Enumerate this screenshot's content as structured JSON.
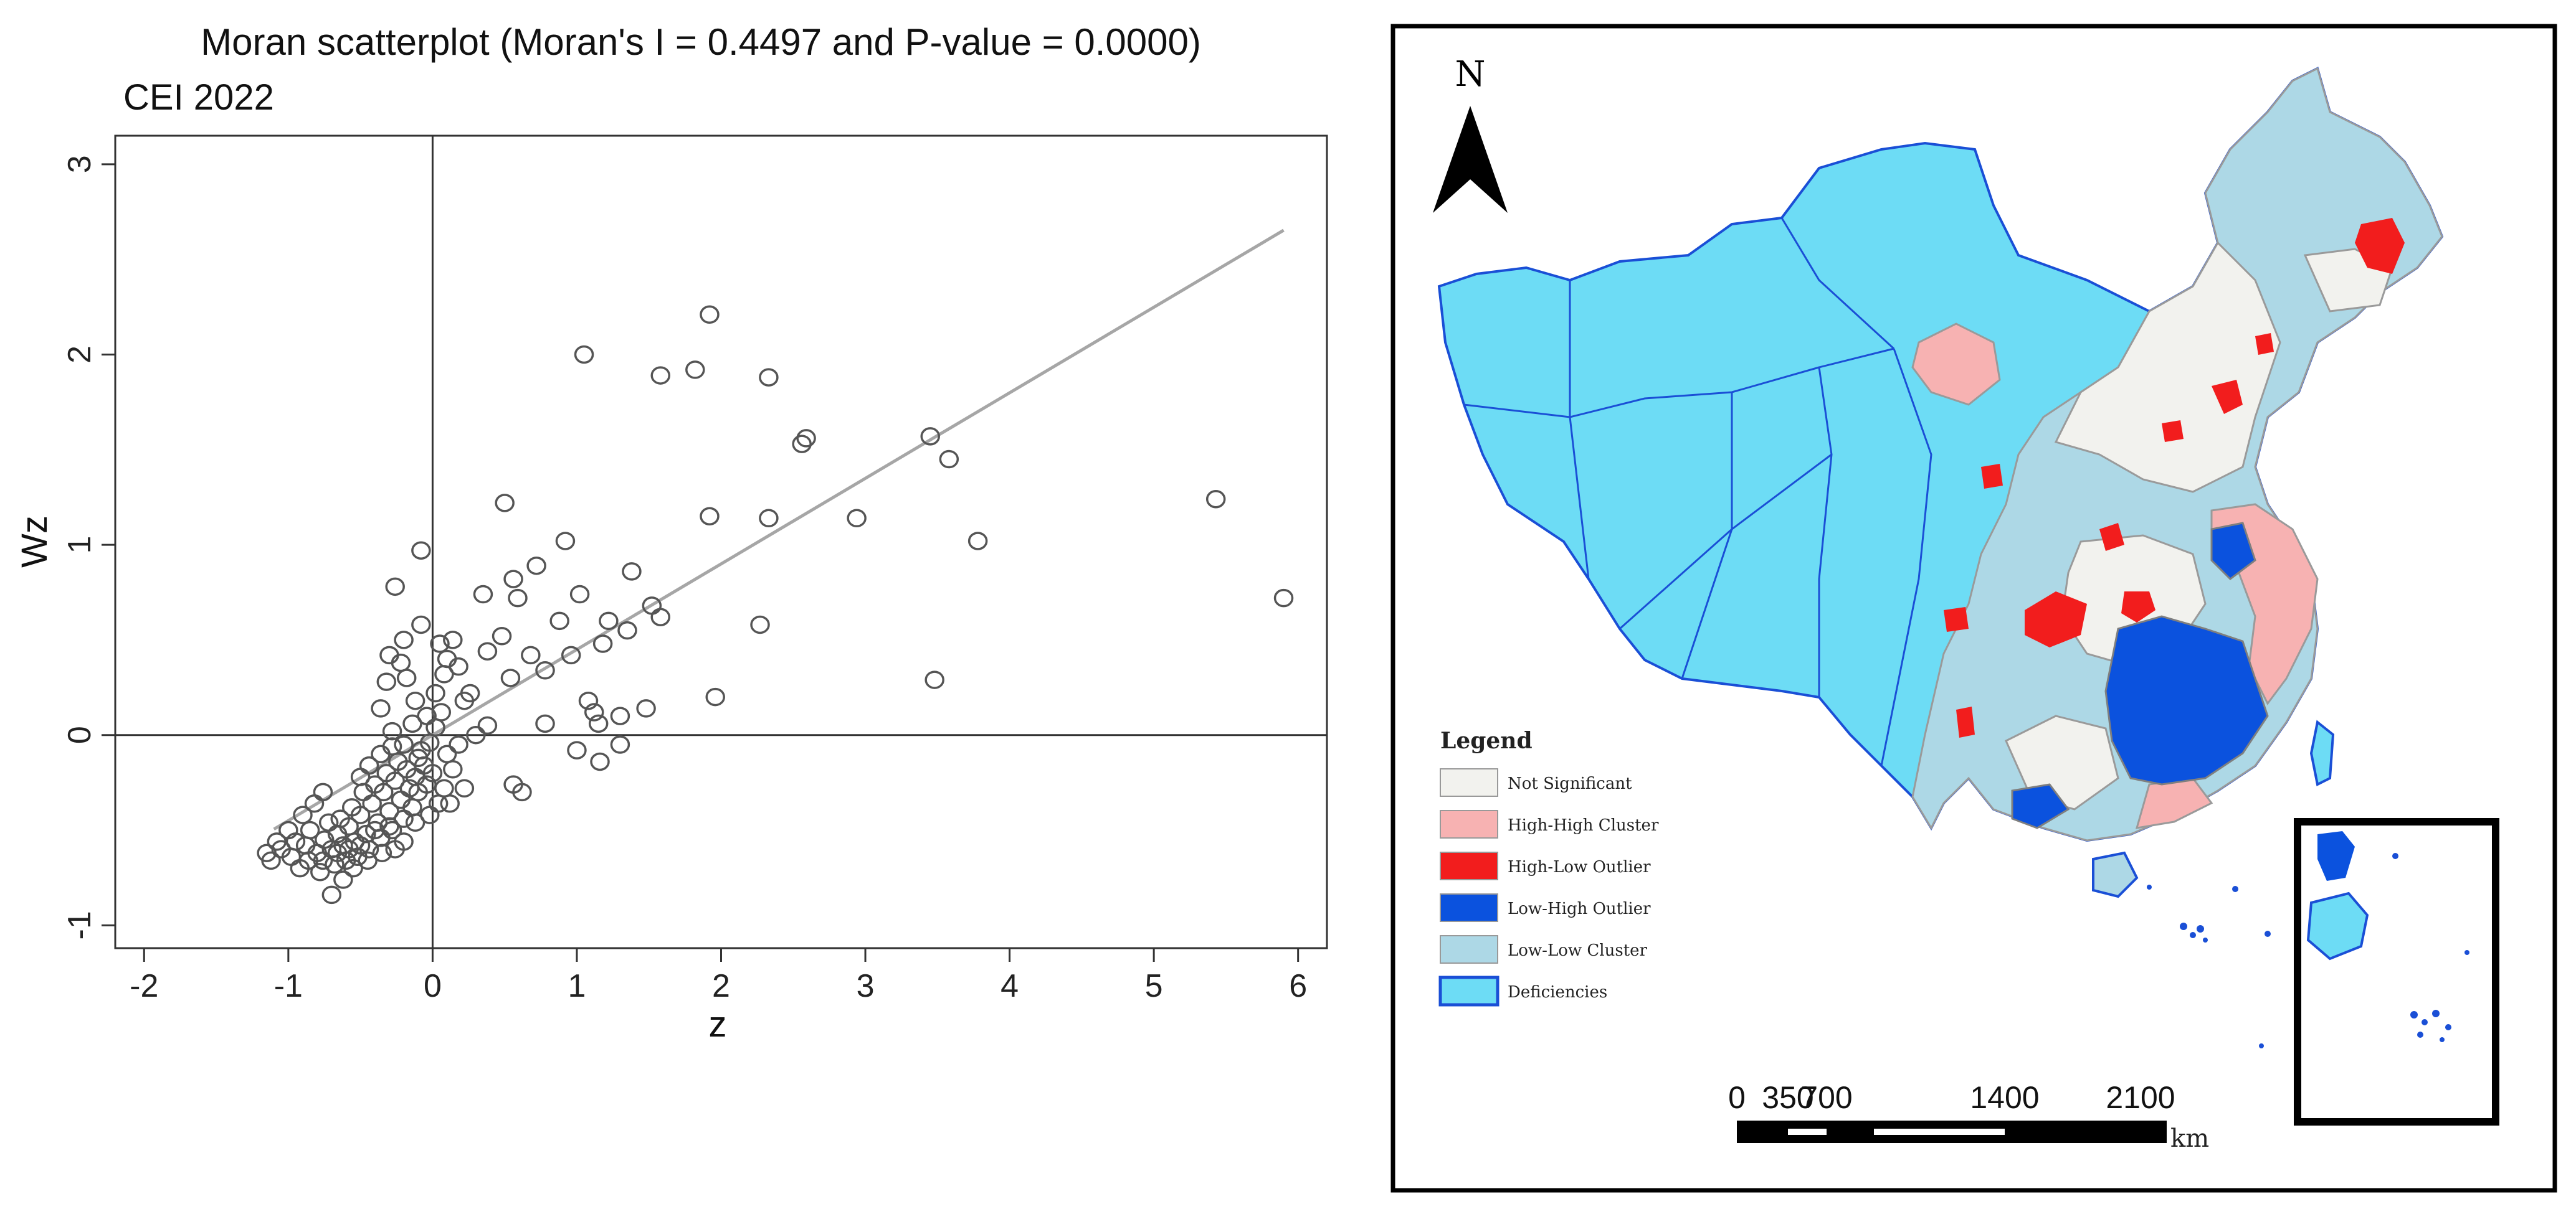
{
  "chart_data": {
    "type": "scatter",
    "title": "Moran scatterplot (Moran's I = 0.4497 and P-value = 0.0000)",
    "subtitle": "CEI 2022",
    "xlabel": "z",
    "ylabel": "Wz",
    "xlim": [
      -2.2,
      6.2
    ],
    "ylim": [
      -1.12,
      3.15
    ],
    "xticks": [
      "-2",
      "-1",
      "0",
      "1",
      "2",
      "3",
      "4",
      "5",
      "6"
    ],
    "yticks": [
      "-1",
      "0",
      "1",
      "2",
      "3"
    ],
    "fit_line": {
      "slope": 0.4497,
      "x_range": [
        -1.1,
        5.9
      ]
    },
    "colors": {
      "points": "#555555",
      "fit_line": "#a6a6a6",
      "axes": "#333333"
    },
    "points": [
      [
        1.05,
        2.0
      ],
      [
        1.92,
        2.21
      ],
      [
        1.58,
        1.89
      ],
      [
        1.82,
        1.92
      ],
      [
        2.33,
        1.88
      ],
      [
        2.56,
        1.53
      ],
      [
        2.59,
        1.56
      ],
      [
        3.45,
        1.57
      ],
      [
        3.58,
        1.45
      ],
      [
        5.43,
        1.24
      ],
      [
        5.9,
        0.72
      ],
      [
        3.78,
        1.02
      ],
      [
        2.94,
        1.14
      ],
      [
        2.33,
        1.14
      ],
      [
        1.92,
        1.15
      ],
      [
        3.48,
        0.29
      ],
      [
        1.96,
        0.2
      ],
      [
        2.27,
        0.58
      ],
      [
        0.5,
        1.22
      ],
      [
        0.92,
        1.02
      ],
      [
        1.02,
        0.74
      ],
      [
        1.38,
        0.86
      ],
      [
        0.56,
        0.82
      ],
      [
        0.59,
        0.72
      ],
      [
        0.72,
        0.89
      ],
      [
        0.35,
        0.74
      ],
      [
        0.88,
        0.6
      ],
      [
        1.22,
        0.6
      ],
      [
        1.35,
        0.55
      ],
      [
        1.58,
        0.62
      ],
      [
        1.52,
        0.68
      ],
      [
        1.18,
        0.48
      ],
      [
        0.68,
        0.42
      ],
      [
        0.48,
        0.52
      ],
      [
        0.38,
        0.44
      ],
      [
        0.18,
        0.36
      ],
      [
        0.26,
        0.22
      ],
      [
        0.54,
        0.3
      ],
      [
        0.78,
        0.34
      ],
      [
        0.96,
        0.42
      ],
      [
        1.08,
        0.18
      ],
      [
        1.12,
        0.12
      ],
      [
        1.15,
        0.06
      ],
      [
        1.3,
        0.1
      ],
      [
        1.48,
        0.14
      ],
      [
        0.78,
        0.06
      ],
      [
        1.0,
        -0.08
      ],
      [
        1.16,
        -0.14
      ],
      [
        1.3,
        -0.05
      ],
      [
        0.56,
        -0.26
      ],
      [
        0.62,
        -0.3
      ],
      [
        0.22,
        -0.28
      ],
      [
        0.12,
        -0.36
      ],
      [
        -0.26,
        0.78
      ],
      [
        -0.08,
        0.97
      ],
      [
        -0.2,
        0.5
      ],
      [
        -0.08,
        0.58
      ],
      [
        0.05,
        0.48
      ],
      [
        0.14,
        0.5
      ],
      [
        -0.3,
        0.42
      ],
      [
        -0.18,
        0.3
      ],
      [
        -0.12,
        0.18
      ],
      [
        0.02,
        0.22
      ],
      [
        0.06,
        0.12
      ],
      [
        -0.36,
        0.14
      ],
      [
        -0.28,
        0.02
      ],
      [
        -0.2,
        -0.05
      ],
      [
        -0.1,
        -0.12
      ],
      [
        0.0,
        -0.2
      ],
      [
        0.1,
        -0.1
      ],
      [
        0.18,
        -0.05
      ],
      [
        0.3,
        0.0
      ],
      [
        0.38,
        0.05
      ],
      [
        -0.22,
        0.38
      ],
      [
        -0.32,
        0.28
      ],
      [
        0.08,
        0.32
      ],
      [
        -1.12,
        -0.66
      ],
      [
        -1.05,
        -0.6
      ],
      [
        -0.98,
        -0.64
      ],
      [
        -0.92,
        -0.7
      ],
      [
        -0.88,
        -0.58
      ],
      [
        -0.85,
        -0.5
      ],
      [
        -0.8,
        -0.62
      ],
      [
        -0.78,
        -0.72
      ],
      [
        -0.75,
        -0.55
      ],
      [
        -0.72,
        -0.46
      ],
      [
        -0.7,
        -0.6
      ],
      [
        -0.68,
        -0.68
      ],
      [
        -0.66,
        -0.52
      ],
      [
        -0.64,
        -0.44
      ],
      [
        -0.62,
        -0.58
      ],
      [
        -0.6,
        -0.66
      ],
      [
        -0.58,
        -0.48
      ],
      [
        -0.56,
        -0.38
      ],
      [
        -0.54,
        -0.56
      ],
      [
        -0.52,
        -0.64
      ],
      [
        -0.5,
        -0.42
      ],
      [
        -0.48,
        -0.3
      ],
      [
        -0.46,
        -0.52
      ],
      [
        -0.44,
        -0.6
      ],
      [
        -0.42,
        -0.36
      ],
      [
        -0.4,
        -0.26
      ],
      [
        -0.38,
        -0.46
      ],
      [
        -0.36,
        -0.54
      ],
      [
        -0.34,
        -0.3
      ],
      [
        -0.32,
        -0.2
      ],
      [
        -0.3,
        -0.4
      ],
      [
        -0.28,
        -0.5
      ],
      [
        -0.26,
        -0.24
      ],
      [
        -0.24,
        -0.14
      ],
      [
        -0.22,
        -0.34
      ],
      [
        -0.2,
        -0.44
      ],
      [
        -0.18,
        -0.18
      ],
      [
        -0.16,
        -0.28
      ],
      [
        -0.14,
        -0.38
      ],
      [
        -0.12,
        -0.22
      ],
      [
        -0.1,
        -0.3
      ],
      [
        -0.08,
        -0.08
      ],
      [
        -0.06,
        -0.16
      ],
      [
        -0.04,
        -0.26
      ],
      [
        -0.02,
        -0.04
      ],
      [
        -0.7,
        -0.84
      ],
      [
        -0.62,
        -0.76
      ],
      [
        -0.55,
        -0.7
      ],
      [
        -0.45,
        -0.66
      ],
      [
        -0.35,
        -0.62
      ],
      [
        -0.9,
        -0.42
      ],
      [
        -0.82,
        -0.36
      ],
      [
        -0.76,
        -0.3
      ],
      [
        -1.0,
        -0.5
      ],
      [
        -0.95,
        -0.56
      ],
      [
        -1.08,
        -0.56
      ],
      [
        -1.15,
        -0.62
      ],
      [
        -0.86,
        -0.66
      ],
      [
        -0.76,
        -0.66
      ],
      [
        -0.66,
        -0.62
      ],
      [
        -0.58,
        -0.6
      ],
      [
        -0.5,
        -0.58
      ],
      [
        -0.4,
        -0.5
      ],
      [
        -0.3,
        -0.48
      ],
      [
        -0.5,
        -0.22
      ],
      [
        -0.44,
        -0.16
      ],
      [
        -0.36,
        -0.1
      ],
      [
        -0.28,
        -0.06
      ],
      [
        0.04,
        -0.36
      ],
      [
        -0.02,
        -0.42
      ],
      [
        -0.12,
        -0.46
      ],
      [
        -0.2,
        -0.56
      ],
      [
        -0.26,
        -0.6
      ],
      [
        0.08,
        -0.28
      ],
      [
        0.14,
        -0.18
      ],
      [
        0.02,
        0.04
      ],
      [
        -0.04,
        0.1
      ],
      [
        -0.14,
        0.06
      ],
      [
        0.22,
        0.18
      ],
      [
        0.1,
        0.4
      ]
    ]
  },
  "map": {
    "north_label": "N",
    "legend_title": "Legend",
    "legend_items": [
      {
        "label": "Not Significant",
        "color": "#f2f2ee"
      },
      {
        "label": "High-High Cluster",
        "color": "#f7b2b2"
      },
      {
        "label": "High-Low Outlier",
        "color": "#f21d1d"
      },
      {
        "label": "Low-High Outlier",
        "color": "#0b52de"
      },
      {
        "label": "Low-Low Cluster",
        "color": "#add8e6"
      },
      {
        "label": "Deficiencies",
        "color": "#6ddcf5"
      }
    ],
    "scale_labels": [
      "0",
      "350",
      "700",
      "1400",
      "2100"
    ],
    "scale_unit": "km"
  }
}
